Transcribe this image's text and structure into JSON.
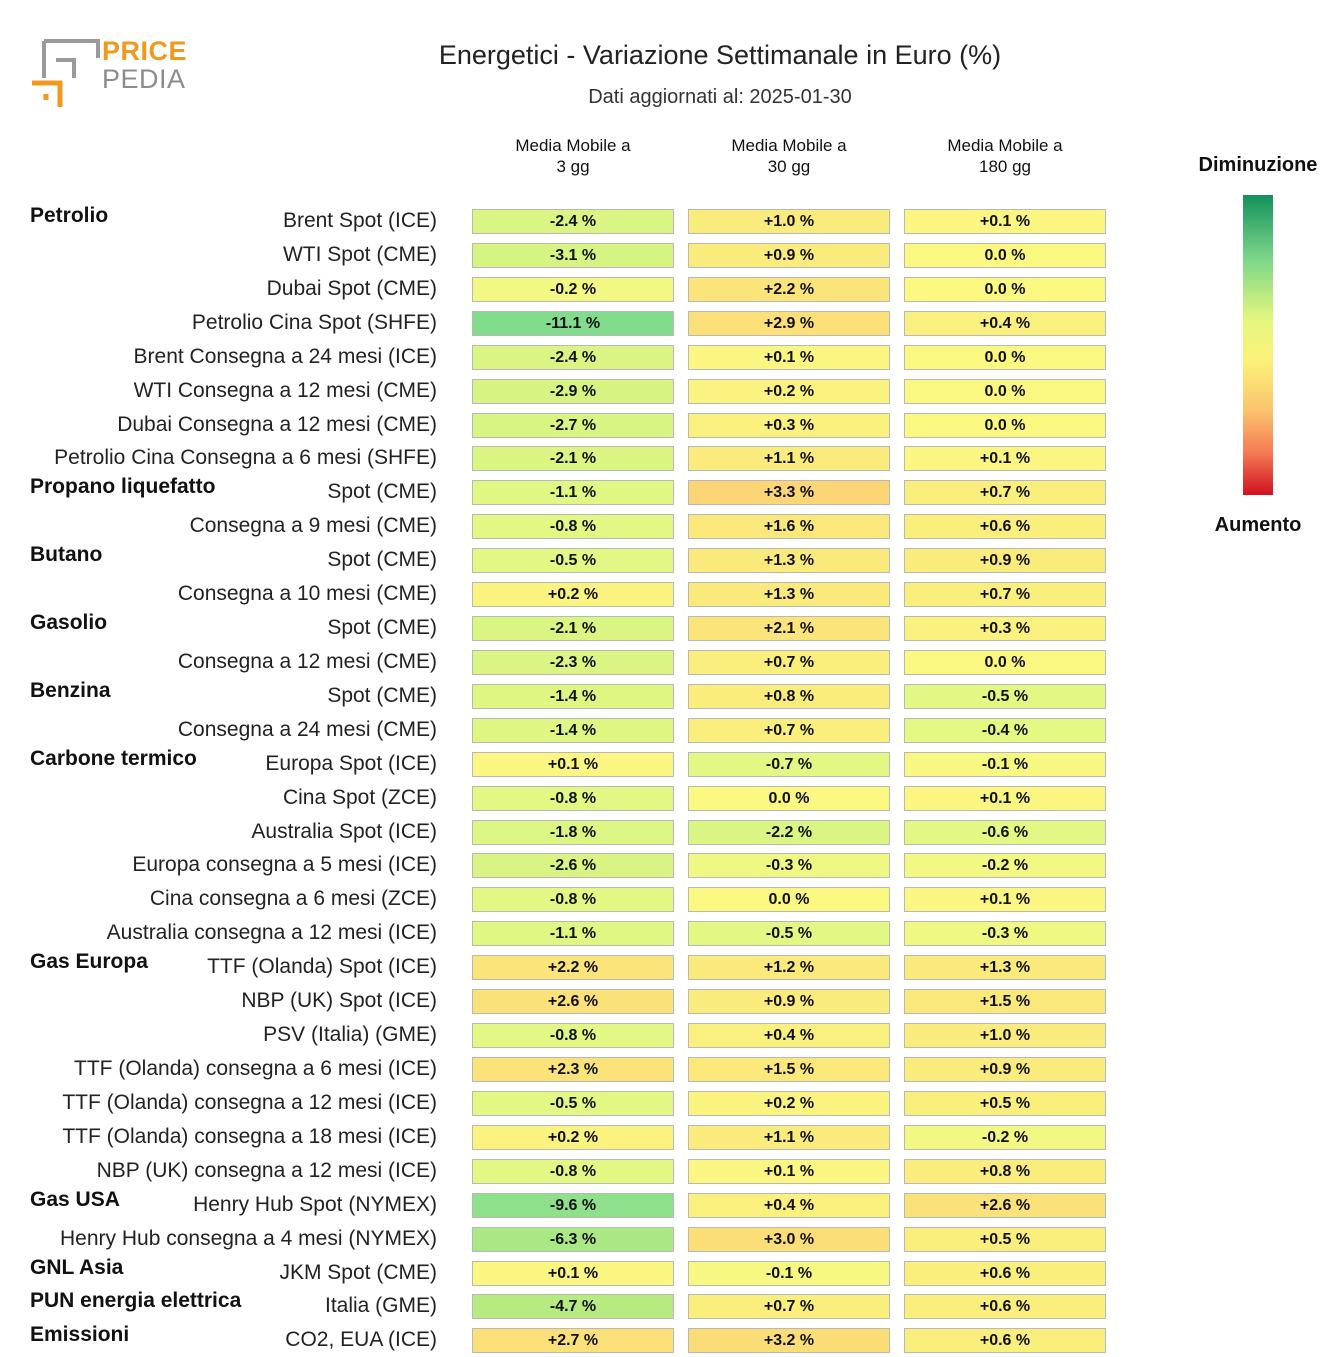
{
  "logo": {
    "price": "PRICE",
    "pedia": "PEDIA"
  },
  "header": {
    "title": "Energetici - Variazione Settimanale in Euro (%)",
    "subtitle": "Dati aggiornati al: 2025-01-30"
  },
  "columns": [
    "Media Mobile a\n3 gg",
    "Media Mobile a\n30 gg",
    "Media Mobile a\n180 gg"
  ],
  "legend": {
    "top_label": "Diminuzione",
    "bottom_label": "Aumento",
    "colors": [
      "#14915c",
      "#e6f77e",
      "#fbf27a",
      "#fbc36d",
      "#d1111f"
    ]
  },
  "chart_data": {
    "type": "heatmap",
    "title": "Energetici - Variazione Settimanale in Euro (%)",
    "subtitle": "Dati aggiornati al: 2025-01-30",
    "unit": "%",
    "columns": [
      "Media Mobile a 3 gg",
      "Media Mobile a 30 gg",
      "Media Mobile a 180 gg"
    ],
    "groups": [
      {
        "category": "Petrolio",
        "rows": [
          {
            "label": "Brent Spot (ICE)",
            "values": [
              -2.4,
              1.0,
              0.1
            ]
          },
          {
            "label": "WTI Spot (CME)",
            "values": [
              -3.1,
              0.9,
              0.0
            ]
          },
          {
            "label": "Dubai Spot (CME)",
            "values": [
              -0.2,
              2.2,
              0.0
            ]
          },
          {
            "label": "Petrolio Cina Spot (SHFE)",
            "values": [
              -11.1,
              2.9,
              0.4
            ]
          },
          {
            "label": "Brent Consegna a 24 mesi (ICE)",
            "values": [
              -2.4,
              0.1,
              0.0
            ]
          },
          {
            "label": "WTI Consegna a 12 mesi (CME)",
            "values": [
              -2.9,
              0.2,
              0.0
            ]
          },
          {
            "label": "Dubai Consegna a 12 mesi (CME)",
            "values": [
              -2.7,
              0.3,
              0.0
            ]
          },
          {
            "label": "Petrolio Cina Consegna a 6 mesi (SHFE)",
            "values": [
              -2.1,
              1.1,
              0.1
            ]
          }
        ]
      },
      {
        "category": "Propano liquefatto",
        "rows": [
          {
            "label": "Spot (CME)",
            "values": [
              -1.1,
              3.3,
              0.7
            ]
          },
          {
            "label": "Consegna a 9 mesi (CME)",
            "values": [
              -0.8,
              1.6,
              0.6
            ]
          }
        ]
      },
      {
        "category": "Butano",
        "rows": [
          {
            "label": "Spot (CME)",
            "values": [
              -0.5,
              1.3,
              0.9
            ]
          },
          {
            "label": "Consegna a 10 mesi (CME)",
            "values": [
              0.2,
              1.3,
              0.7
            ]
          }
        ]
      },
      {
        "category": "Gasolio",
        "rows": [
          {
            "label": "Spot (CME)",
            "values": [
              -2.1,
              2.1,
              0.3
            ]
          },
          {
            "label": "Consegna a 12 mesi (CME)",
            "values": [
              -2.3,
              0.7,
              0.0
            ]
          }
        ]
      },
      {
        "category": "Benzina",
        "rows": [
          {
            "label": "Spot (CME)",
            "values": [
              -1.4,
              0.8,
              -0.5
            ]
          },
          {
            "label": "Consegna a 24 mesi (CME)",
            "values": [
              -1.4,
              0.7,
              -0.4
            ]
          }
        ]
      },
      {
        "category": "Carbone termico",
        "rows": [
          {
            "label": "Europa Spot (ICE)",
            "values": [
              0.1,
              -0.7,
              -0.1
            ]
          },
          {
            "label": "Cina Spot (ZCE)",
            "values": [
              -0.8,
              0.0,
              0.1
            ]
          },
          {
            "label": "Australia Spot (ICE)",
            "values": [
              -1.8,
              -2.2,
              -0.6
            ]
          },
          {
            "label": "Europa consegna a 5 mesi (ICE)",
            "values": [
              -2.6,
              -0.3,
              -0.2
            ]
          },
          {
            "label": "Cina consegna a 6 mesi (ZCE)",
            "values": [
              -0.8,
              0.0,
              0.1
            ]
          },
          {
            "label": "Australia consegna a 12 mesi (ICE)",
            "values": [
              -1.1,
              -0.5,
              -0.3
            ]
          }
        ]
      },
      {
        "category": "Gas Europa",
        "rows": [
          {
            "label": "TTF (Olanda) Spot (ICE)",
            "values": [
              2.2,
              1.2,
              1.3
            ]
          },
          {
            "label": "NBP (UK) Spot (ICE)",
            "values": [
              2.6,
              0.9,
              1.5
            ]
          },
          {
            "label": "PSV (Italia) (GME)",
            "values": [
              -0.8,
              0.4,
              1.0
            ]
          },
          {
            "label": "TTF (Olanda) consegna a 6 mesi (ICE)",
            "values": [
              2.3,
              1.5,
              0.9
            ]
          },
          {
            "label": "TTF (Olanda) consegna a 12 mesi (ICE)",
            "values": [
              -0.5,
              0.2,
              0.5
            ]
          },
          {
            "label": "TTF (Olanda) consegna a 18 mesi (ICE)",
            "values": [
              0.2,
              1.1,
              -0.2
            ]
          },
          {
            "label": "NBP (UK) consegna a 12 mesi (ICE)",
            "values": [
              -0.8,
              0.1,
              0.8
            ]
          }
        ]
      },
      {
        "category": "Gas USA",
        "rows": [
          {
            "label": "Henry Hub Spot (NYMEX)",
            "values": [
              -9.6,
              0.4,
              2.6
            ]
          },
          {
            "label": "Henry Hub consegna a 4 mesi (NYMEX)",
            "values": [
              -6.3,
              3.0,
              0.5
            ]
          }
        ]
      },
      {
        "category": "GNL Asia",
        "rows": [
          {
            "label": "JKM Spot (CME)",
            "values": [
              0.1,
              -0.1,
              0.6
            ]
          }
        ]
      },
      {
        "category": "PUN energia elettrica",
        "rows": [
          {
            "label": "Italia (GME)",
            "values": [
              -4.7,
              0.7,
              0.6
            ]
          }
        ]
      },
      {
        "category": "Emissioni",
        "rows": [
          {
            "label": "CO2, EUA (ICE)",
            "values": [
              2.7,
              3.2,
              0.6
            ]
          }
        ]
      }
    ]
  }
}
